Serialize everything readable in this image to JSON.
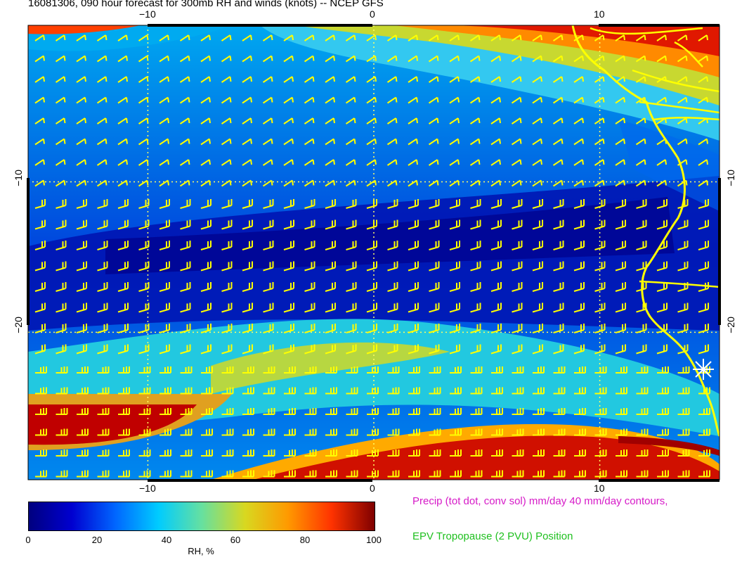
{
  "title": "16081306, 090 hour forecast for 300mb RH and winds (knots) -- NCEP GFS",
  "map": {
    "lon_range": [
      -15.3,
      15.3
    ],
    "lat_range": [
      -29.8,
      0.4
    ],
    "top_lon_ticks": [
      "−10",
      "0",
      "10"
    ],
    "bottom_lon_ticks": [
      "−10",
      "0",
      "10"
    ],
    "left_lat_ticks": [
      "−10",
      "−20"
    ],
    "right_lat_ticks": [
      "−10",
      "−20"
    ],
    "wind_barb_color": "#ffff00",
    "coastline_color": "#ffff00",
    "grid_color": "#ffff66"
  },
  "colorbar": {
    "ticks": [
      "0",
      "20",
      "40",
      "60",
      "80",
      "100"
    ],
    "label": "RH, %",
    "colors": [
      "#00007f",
      "#0000d0",
      "#0066ff",
      "#00ccff",
      "#66e0a0",
      "#d8d820",
      "#ff9900",
      "#ff3300",
      "#7f0000"
    ]
  },
  "legend_notes": {
    "precip": "Precip (tot dot, conv sol) mm/day 40 mm/day contours,",
    "epv": "EPV Tropopause (2 PVU) Position"
  },
  "marker": {
    "symbol": "white-star-icon"
  }
}
